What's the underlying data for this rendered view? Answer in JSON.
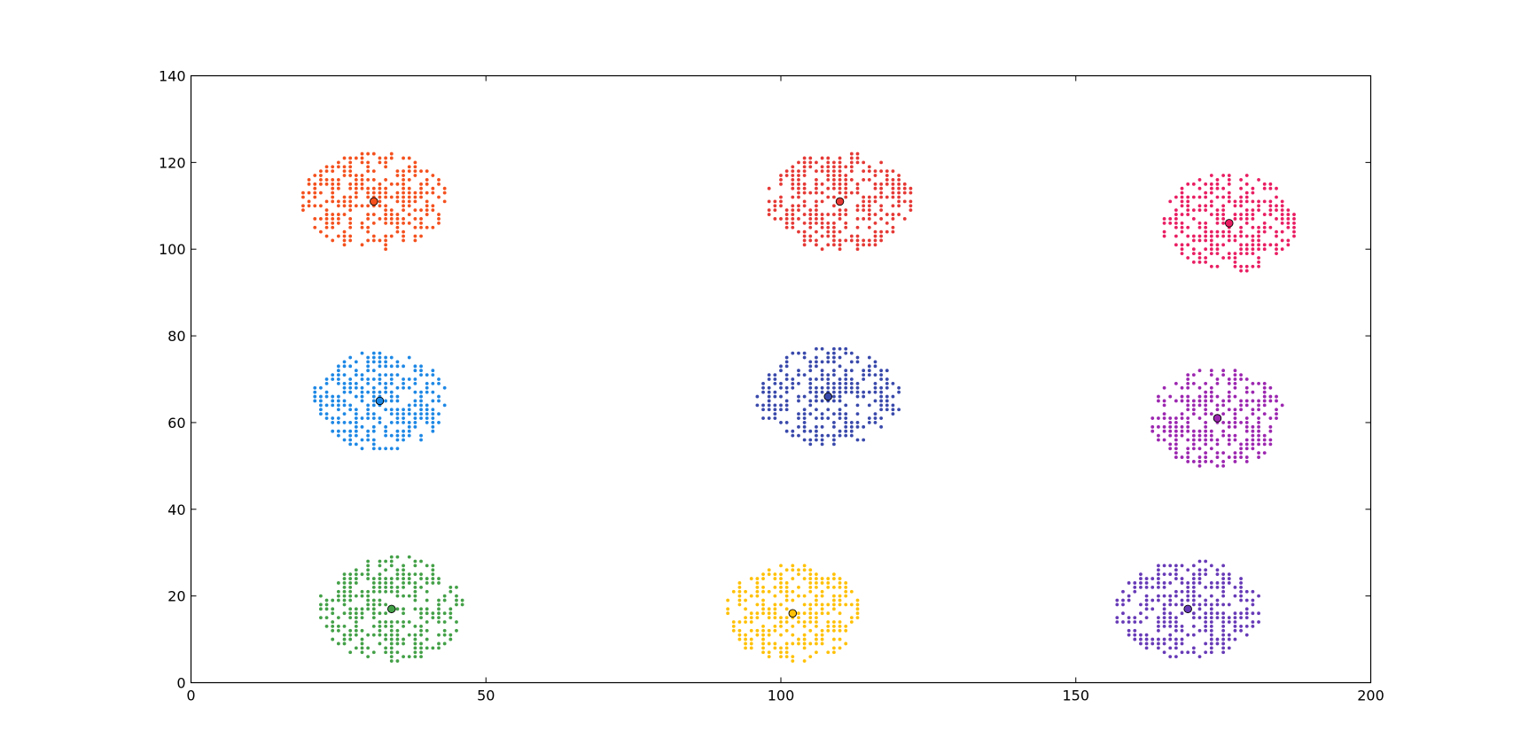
{
  "chart_data": {
    "type": "scatter",
    "title": "",
    "xlabel": "",
    "ylabel": "",
    "xlim": [
      0,
      200
    ],
    "ylim": [
      0,
      140
    ],
    "x_ticks": [
      0,
      50,
      100,
      150,
      200
    ],
    "y_ticks": [
      0,
      20,
      40,
      60,
      80,
      100,
      120,
      140
    ],
    "x_tick_labels": [
      "0",
      "50",
      "100",
      "150",
      "200"
    ],
    "y_tick_labels": [
      "0",
      "20",
      "40",
      "60",
      "80",
      "100",
      "120",
      "140"
    ],
    "grid": false,
    "legend": "none",
    "point_spacing": 1,
    "clusters": [
      {
        "color": "#f4511e",
        "center": [
          31,
          111
        ],
        "rx": 12,
        "ry": 11,
        "x_range": [
          19,
          43
        ],
        "y_range": [
          100,
          122
        ]
      },
      {
        "color": "#e53935",
        "center": [
          110,
          111
        ],
        "rx": 12,
        "ry": 11,
        "x_range": [
          98,
          122
        ],
        "y_range": [
          100,
          122
        ]
      },
      {
        "color": "#e91e63",
        "center": [
          176,
          106
        ],
        "rx": 11,
        "ry": 11,
        "x_range": [
          165,
          187
        ],
        "y_range": [
          95,
          117
        ]
      },
      {
        "color": "#1e88e5",
        "center": [
          32,
          65
        ],
        "rx": 11,
        "ry": 11,
        "x_range": [
          21,
          45
        ],
        "y_range": [
          54,
          77
        ]
      },
      {
        "color": "#3949ab",
        "center": [
          108,
          66
        ],
        "rx": 12,
        "ry": 11,
        "x_range": [
          96,
          120
        ],
        "y_range": [
          55,
          77
        ]
      },
      {
        "color": "#9c27b0",
        "center": [
          174,
          61
        ],
        "rx": 11,
        "ry": 11,
        "x_range": [
          163,
          185
        ],
        "y_range": [
          49,
          72
        ]
      },
      {
        "color": "#43a047",
        "center": [
          34,
          17
        ],
        "rx": 12,
        "ry": 12,
        "x_range": [
          22,
          46
        ],
        "y_range": [
          5,
          29
        ]
      },
      {
        "color": "#ffc107",
        "center": [
          102,
          16
        ],
        "rx": 11,
        "ry": 11,
        "x_range": [
          91,
          113
        ],
        "y_range": [
          5,
          27
        ]
      },
      {
        "color": "#673ab7",
        "center": [
          169,
          17
        ],
        "rx": 12,
        "ry": 11,
        "x_range": [
          157,
          181
        ],
        "y_range": [
          6,
          28
        ]
      }
    ]
  }
}
